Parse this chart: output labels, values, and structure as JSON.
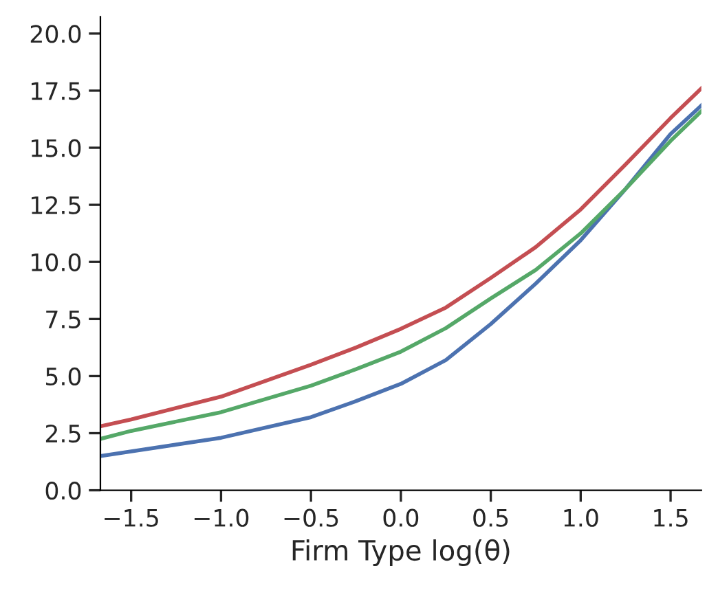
{
  "chart_data": {
    "type": "line",
    "xlabel": "Firm Type log(θ)",
    "xlim": [
      -1.671,
      1.671
    ],
    "xticks": [
      {
        "value": -1.5,
        "label": "−1.5"
      },
      {
        "value": -1.0,
        "label": "−1.0"
      },
      {
        "value": -0.5,
        "label": "−0.5"
      },
      {
        "value": 0.0,
        "label": "0.0"
      },
      {
        "value": 0.5,
        "label": "0.5"
      },
      {
        "value": 1.0,
        "label": "1.0"
      },
      {
        "value": 1.5,
        "label": "1.5"
      }
    ],
    "ylim": [
      0,
      20.74
    ],
    "yticks": [
      {
        "value": 0,
        "label": "0.0"
      },
      2.5,
      {
        "value": 5,
        "label": "5.0"
      },
      7.5,
      {
        "value": 10,
        "label": "10.0"
      },
      12.5,
      {
        "value": 15,
        "label": "15.0"
      },
      17.5,
      {
        "value": 20,
        "label": "20.0"
      }
    ],
    "grid": false,
    "legend": false,
    "marker": "none",
    "line_style": "solid",
    "x": [
      -1.671,
      -1.5,
      -1.0,
      -0.5,
      -0.25,
      0.0,
      0.25,
      0.5,
      0.75,
      1.0,
      1.25,
      1.5,
      1.671
    ],
    "series": [
      {
        "color": "#4c72b0",
        "values": [
          1.5,
          1.7,
          2.3,
          3.2,
          3.9,
          4.66,
          5.7,
          7.28,
          9.05,
          10.95,
          13.2,
          15.6,
          16.85
        ]
      },
      {
        "color": "#55a868",
        "values": [
          2.25,
          2.6,
          3.42,
          4.58,
          5.3,
          6.07,
          7.1,
          8.4,
          9.65,
          11.25,
          13.2,
          15.3,
          16.6
        ]
      },
      {
        "color": "#c44e52",
        "values": [
          2.8,
          3.1,
          4.1,
          5.5,
          6.25,
          7.07,
          8.0,
          9.3,
          10.65,
          12.3,
          14.27,
          16.3,
          17.6
        ]
      }
    ]
  }
}
